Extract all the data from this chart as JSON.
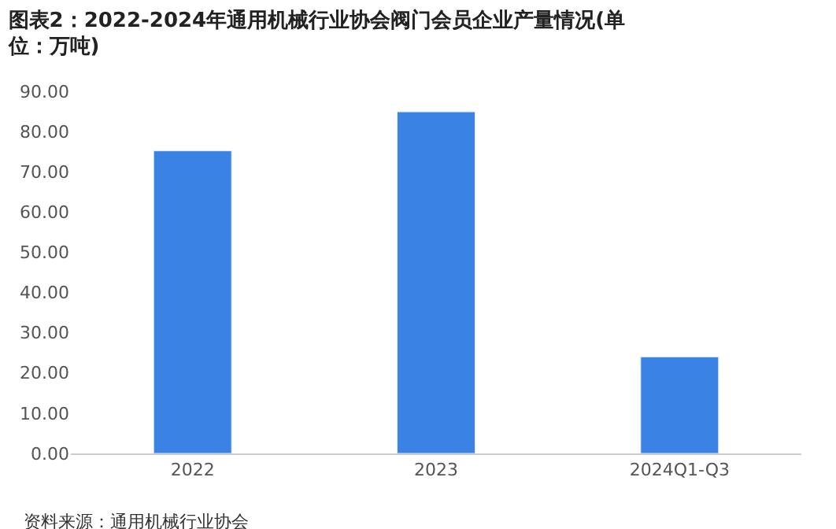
{
  "chart_data": {
    "type": "bar",
    "title": "图表2：2022-2024年通用机械行业协会阀门会员企业产量情况(单位：万吨)",
    "categories": [
      "2022",
      "2023",
      "2024Q1-Q3"
    ],
    "values": [
      75.2,
      84.9,
      24.0
    ],
    "color": "#3a82e4",
    "ylim": [
      0,
      90
    ],
    "yticks": [
      {
        "value": 0,
        "label": "0.00"
      },
      {
        "value": 10,
        "label": "10.00"
      },
      {
        "value": 20,
        "label": "20.00"
      },
      {
        "value": 30,
        "label": "30.00"
      },
      {
        "value": 40,
        "label": "40.00"
      },
      {
        "value": 50,
        "label": "50.00"
      },
      {
        "value": 60,
        "label": "60.00"
      },
      {
        "value": 70,
        "label": "70.00"
      },
      {
        "value": 80,
        "label": "80.00"
      },
      {
        "value": 90,
        "label": "90.00"
      }
    ],
    "annotations": [
      "资料来源：通用机械行业协会"
    ]
  }
}
